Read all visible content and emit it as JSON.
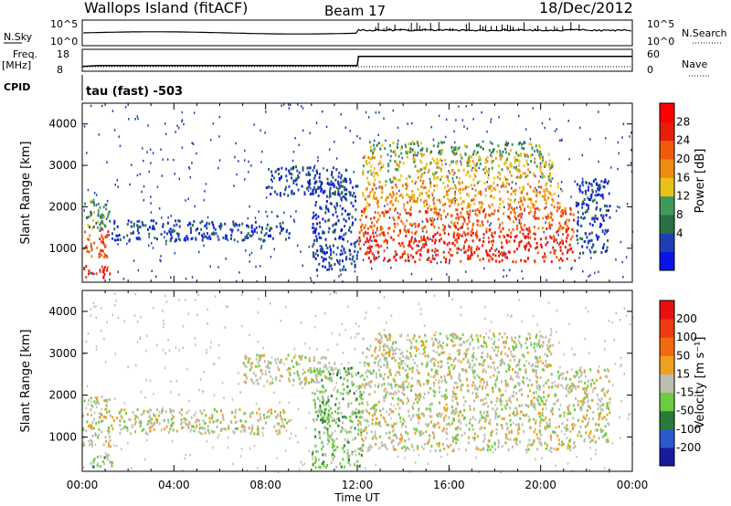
{
  "header": {
    "station": "Wallops Island (fitACF)",
    "beam": "Beam 17",
    "date": "18/Dec/2012"
  },
  "param_panels": {
    "nsky_label": "N.Sky",
    "nsky_ticks": [
      "10^5",
      "10^0"
    ],
    "nsearch_label": "N.Search",
    "nsearch_ticks": [
      "10^5",
      "10^0"
    ],
    "freq_label": "Freq.",
    "freq_unit": "[MHz]",
    "freq_ticks": [
      "18",
      "8"
    ],
    "nave_label": "Nave",
    "nave_ticks": [
      "60",
      "0"
    ],
    "cpid_label": "CPID",
    "cpid_text": "tau (fast) -503",
    "freq_steps": [
      {
        "hour": 0.0,
        "mhz": 10.2
      },
      {
        "hour": 0.75,
        "mhz": 10.6
      },
      {
        "hour": 12.0,
        "mhz": 10.6
      },
      {
        "hour": 12.05,
        "mhz": 14.8
      },
      {
        "hour": 24.0,
        "mhz": 14.8
      }
    ]
  },
  "x_axis": {
    "label": "Time UT",
    "ticks": [
      "00:00",
      "04:00",
      "08:00",
      "12:00",
      "16:00",
      "20:00",
      "00:00"
    ],
    "range_hours": [
      0,
      24
    ]
  },
  "colors": {
    "power": [
      "#0a14e6",
      "#1e3fb4",
      "#2c6e48",
      "#3f9a5a",
      "#e8c21a",
      "#f08c12",
      "#f05a0a",
      "#e81e0a",
      "#ff0000"
    ],
    "velocity": [
      "#1a1aa0",
      "#2a5ad0",
      "#2a7a3a",
      "#6acc40",
      "#bdbdb0",
      "#f0a020",
      "#f06a10",
      "#f03a10",
      "#e81010"
    ]
  },
  "chart_data": [
    {
      "type": "heatmap",
      "parameter": "Power",
      "ylabel": "Slant Range [km]",
      "xlabel": "",
      "ylim": [
        180,
        4500
      ],
      "xlim_hours": [
        0,
        24
      ],
      "yticks": [
        "1000",
        "2000",
        "3000",
        "4000"
      ],
      "colorbar_label": "Power [dB]",
      "colorbar_ticks": [
        "28",
        "24",
        "20",
        "16",
        "12",
        "8",
        "4"
      ],
      "regions": [
        {
          "t0": 0.0,
          "t1": 1.2,
          "r0": 300,
          "r1": 600,
          "level": 7
        },
        {
          "t0": 0.0,
          "t1": 1.1,
          "r0": 800,
          "r1": 1500,
          "level": 6
        },
        {
          "t0": 0.0,
          "t1": 1.2,
          "r0": 1500,
          "r1": 2200,
          "level": 3
        },
        {
          "t0": 1.2,
          "t1": 9.0,
          "r0": 1200,
          "r1": 1700,
          "level": 1
        },
        {
          "t0": 8.0,
          "t1": 11.5,
          "r0": 2300,
          "r1": 3000,
          "level": 1
        },
        {
          "t0": 10.0,
          "t1": 12.0,
          "r0": 500,
          "r1": 2700,
          "level": 1
        },
        {
          "t0": 12.0,
          "t1": 21.5,
          "r0": 700,
          "r1": 1400,
          "level": 7
        },
        {
          "t0": 12.0,
          "t1": 21.5,
          "r0": 1400,
          "r1": 2000,
          "level": 6
        },
        {
          "t0": 12.2,
          "t1": 21.0,
          "r0": 2000,
          "r1": 2600,
          "level": 5
        },
        {
          "t0": 12.2,
          "t1": 20.5,
          "r0": 2600,
          "r1": 3300,
          "level": 4
        },
        {
          "t0": 12.5,
          "t1": 20.0,
          "r0": 3300,
          "r1": 3600,
          "level": 3
        },
        {
          "t0": 21.5,
          "t1": 23.0,
          "r0": 900,
          "r1": 2700,
          "level": 1
        }
      ]
    },
    {
      "type": "heatmap",
      "parameter": "Velocity",
      "ylabel": "Slant Range [km]",
      "xlabel": "Time UT",
      "ylim": [
        180,
        4500
      ],
      "xlim_hours": [
        0,
        24
      ],
      "yticks": [
        "1000",
        "2000",
        "3000",
        "4000"
      ],
      "colorbar_label": "Velocity [m s⁻¹]",
      "colorbar_ticks": [
        "200",
        "100",
        "50",
        "15",
        "-15",
        "-50",
        "-100",
        "-200"
      ],
      "regions": [
        {
          "t0": 0.2,
          "t1": 1.3,
          "r0": 300,
          "r1": 700,
          "level": 3
        },
        {
          "t0": 0.0,
          "t1": 1.2,
          "r0": 800,
          "r1": 2000,
          "level": 4
        },
        {
          "t0": 1.2,
          "t1": 9.0,
          "r0": 1100,
          "r1": 1700,
          "level": 4
        },
        {
          "t0": 7.0,
          "t1": 11.0,
          "r0": 2300,
          "r1": 3000,
          "level": 4
        },
        {
          "t0": 10.0,
          "t1": 12.2,
          "r0": 300,
          "r1": 2700,
          "level": 3
        },
        {
          "t0": 12.0,
          "t1": 21.5,
          "r0": 700,
          "r1": 2600,
          "level": 4
        },
        {
          "t0": 12.2,
          "t1": 20.5,
          "r0": 2600,
          "r1": 3500,
          "level": 4
        },
        {
          "t0": 21.5,
          "t1": 23.0,
          "r0": 900,
          "r1": 2700,
          "level": 4
        }
      ]
    }
  ]
}
